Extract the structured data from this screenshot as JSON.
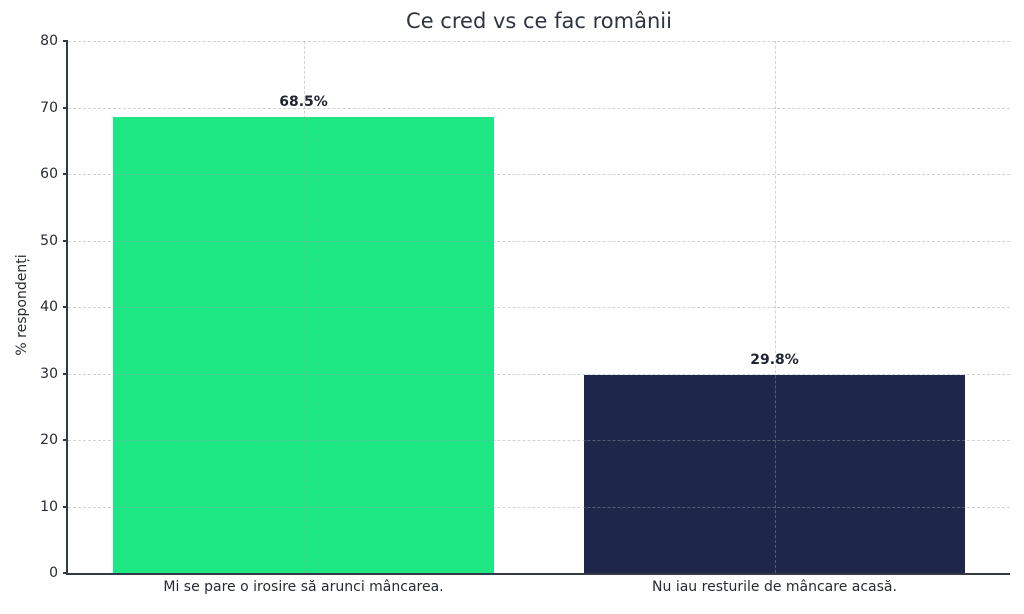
{
  "chart_data": {
    "type": "bar",
    "title": "Ce cred vs ce fac românii",
    "xlabel": "",
    "ylabel": "% respondenți",
    "categories": [
      "Mi se pare o irosire să arunci mâncarea.",
      "Nu iau resturile de mâncare acasă."
    ],
    "values": [
      68.5,
      29.8
    ],
    "value_labels": [
      "68.5%",
      "29.8%"
    ],
    "bar_colors": [
      "#1ce783",
      "#1e2749"
    ],
    "ylim": [
      0,
      80
    ],
    "yticks": [
      0,
      10,
      20,
      30,
      40,
      50,
      60,
      70,
      80
    ],
    "grid": "dashed horizontal lines at each y tick and dashed vertical lines at category centers, drawn over bars",
    "legend": "none"
  },
  "colors": {
    "background": "#ffffff",
    "grid": "#9aa0a6",
    "spine": "#343a43",
    "title_text": "#2e3440",
    "tick_text": "#262b33",
    "value_label_text": "#1f2430"
  }
}
